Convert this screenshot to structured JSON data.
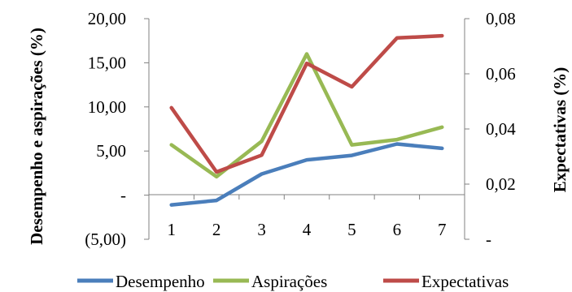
{
  "chart_data": {
    "type": "line",
    "categories": [
      "1",
      "2",
      "3",
      "4",
      "5",
      "6",
      "7"
    ],
    "y_left": {
      "label": "Desempenho e aspirações (%)",
      "ylim": [
        -5,
        20
      ],
      "ticks": [
        -5,
        0,
        5,
        10,
        15,
        20
      ],
      "tick_labels": [
        "(5,00)",
        "-",
        "5,00",
        "10,00",
        "15,00",
        "20,00"
      ]
    },
    "y_right": {
      "label": "Expectativas (%)",
      "ylim": [
        0,
        0.08
      ],
      "ticks": [
        0,
        0.02,
        0.04,
        0.06,
        0.08
      ],
      "tick_labels": [
        "-",
        "0,02",
        "0,04",
        "0,06",
        "0,08"
      ]
    },
    "series": [
      {
        "name": "Desempenho",
        "axis": "left",
        "color": "#4a7ebb",
        "values": [
          -1.1,
          -0.6,
          2.4,
          4.0,
          4.5,
          5.8,
          5.3
        ]
      },
      {
        "name": "Aspirações",
        "axis": "left",
        "color": "#98b954",
        "values": [
          5.7,
          2.1,
          6.1,
          16.0,
          5.7,
          6.3,
          7.7
        ]
      },
      {
        "name": "Expectativas",
        "axis": "right",
        "color": "#be4b48",
        "values": [
          0.0477,
          0.0244,
          0.0305,
          0.0638,
          0.0553,
          0.073,
          0.0738
        ]
      }
    ],
    "grid": false,
    "legend": "bottom"
  }
}
